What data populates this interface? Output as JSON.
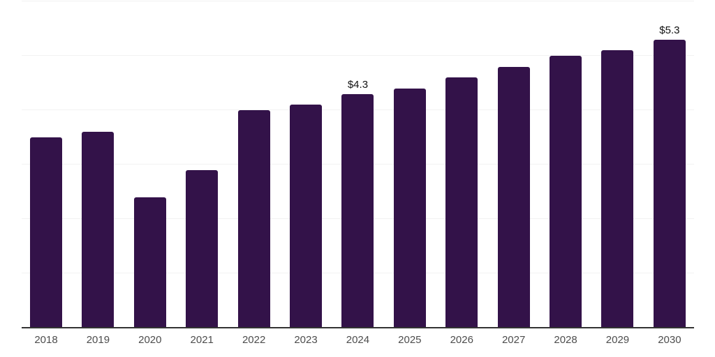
{
  "chart_data": {
    "type": "bar",
    "categories": [
      "2018",
      "2019",
      "2020",
      "2021",
      "2022",
      "2023",
      "2024",
      "2025",
      "2026",
      "2027",
      "2028",
      "2029",
      "2030"
    ],
    "values": [
      3.5,
      3.6,
      2.4,
      2.9,
      4.0,
      4.1,
      4.3,
      4.4,
      4.6,
      4.8,
      5.0,
      5.1,
      5.3
    ],
    "point_labels": [
      {
        "category": "2024",
        "text": "$4.3"
      },
      {
        "category": "2030",
        "text": "$5.3"
      }
    ],
    "ylim": [
      0,
      6
    ],
    "gridline_step": 1,
    "grid": true,
    "legend": false,
    "bar_color": "#331249"
  },
  "styles": {
    "background": "#ffffff",
    "gridline_color": "#f2f2f2",
    "axis_line_color": "#333333",
    "tick_label_color": "#4d4d4d",
    "value_label_color": "#111111"
  }
}
